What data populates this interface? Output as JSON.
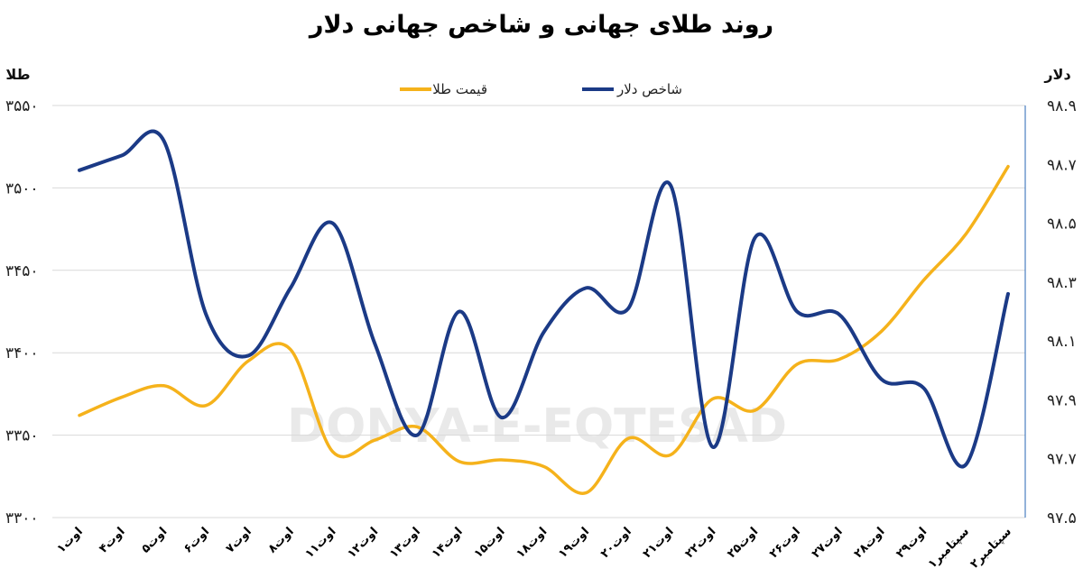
{
  "chart_data": {
    "type": "line",
    "title": "روند طلای جهانی و شاخص جهانی دلار",
    "watermark": "DONYA-E-EQTESAD",
    "categories": [
      "۱اوت",
      "۴اوت",
      "۵اوت",
      "۶اوت",
      "۷اوت",
      "۸اوت",
      "۱۱اوت",
      "۱۲اوت",
      "۱۳اوت",
      "۱۴اوت",
      "۱۵اوت",
      "۱۸اوت",
      "۱۹اوت",
      "۲۰اوت",
      "۲۱اوت",
      "۲۲اوت",
      "۲۵اوت",
      "۲۶اوت",
      "۲۷اوت",
      "۲۸اوت",
      "۲۹اوت",
      "۱سپتامبر",
      "۲سپتامبر"
    ],
    "left_axis": {
      "label": "طلا",
      "ylim": [
        3300,
        3550
      ],
      "ticks": [
        "۳۳۰۰",
        "۳۳۵۰",
        "۳۴۰۰",
        "۳۴۵۰",
        "۳۵۰۰",
        "۳۵۵۰"
      ],
      "tick_values": [
        3300,
        3350,
        3400,
        3450,
        3500,
        3550
      ]
    },
    "right_axis": {
      "label": "دلار",
      "ylim": [
        97.5,
        98.9
      ],
      "ticks": [
        "۹۷.۵",
        "۹۷.۷",
        "۹۷.۹",
        "۹۸.۱",
        "۹۸.۳",
        "۹۸.۵",
        "۹۸.۷",
        "۹۸.۹"
      ],
      "tick_values": [
        97.5,
        97.7,
        97.9,
        98.1,
        98.3,
        98.5,
        98.7,
        98.9
      ]
    },
    "grid": true,
    "legend_position": "top-center",
    "series": [
      {
        "name": "قیمت طلا",
        "axis": "left",
        "color": "#F5B21B",
        "values": [
          3362,
          3373,
          3380,
          3368,
          3395,
          3402,
          3340,
          3347,
          3355,
          3334,
          3335,
          3331,
          3315,
          3348,
          3338,
          3372,
          3365,
          3393,
          3396,
          3413,
          3444,
          3472,
          3513
        ]
      },
      {
        "name": "شاخص دلار",
        "axis": "right",
        "color": "#1B3A86",
        "values": [
          98.68,
          98.73,
          98.78,
          98.19,
          98.05,
          98.28,
          98.5,
          98.09,
          97.78,
          98.2,
          97.84,
          98.13,
          98.28,
          98.21,
          98.63,
          97.74,
          98.45,
          98.2,
          98.19,
          97.97,
          97.94,
          97.68,
          98.26
        ]
      }
    ]
  }
}
